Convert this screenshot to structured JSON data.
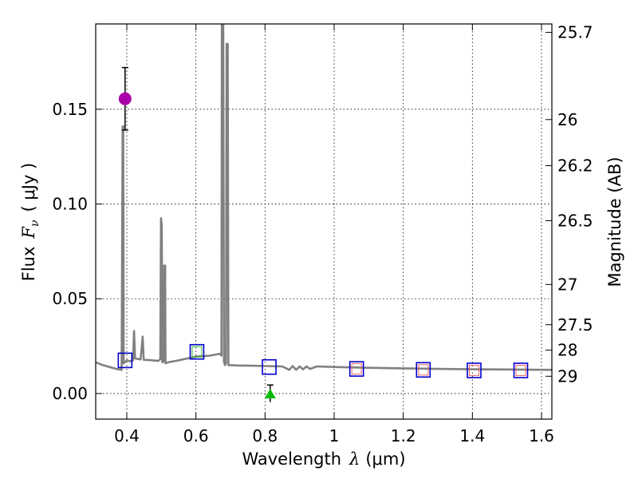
{
  "chart_data": {
    "type": "line",
    "xlabel": "Wavelength",
    "xlabel_symbol": "λ",
    "xlabel_unit": "(μm)",
    "ylabel": "Flux",
    "ylabel_symbol": "F",
    "ylabel_subscript": "ν",
    "ylabel_unit": "( μJy )",
    "y2label": "Magnitude (AB)",
    "xlim": [
      0.31,
      1.63
    ],
    "ylim": [
      -0.0135,
      0.195
    ],
    "grid": true,
    "x_ticks": [
      0.4,
      0.6,
      0.8,
      1.0,
      1.2,
      1.4,
      1.6
    ],
    "x_tick_labels": [
      "0.4",
      "0.6",
      "0.8",
      "1",
      "1.2",
      "1.4",
      "1.6"
    ],
    "y_ticks": [
      0.0,
      0.05,
      0.1,
      0.15
    ],
    "y_tick_labels": [
      "0.00",
      "0.05",
      "0.10",
      "0.15"
    ],
    "mag_ticks": [
      25.7,
      26,
      26.2,
      26.5,
      27,
      27.5,
      28,
      29
    ],
    "mag_tick_labels": [
      "25.7",
      "26",
      "26.2",
      "26.5",
      "27",
      "27.5",
      "28",
      "29"
    ],
    "colors": {
      "spectrum": "#808080",
      "observed_point": "#aa00aa",
      "upper_limit": "#00bb00",
      "model_box": "#0000cc",
      "model_inner": "#ee6666",
      "model_inner_green": "#33bb33",
      "errorbar": "#000000"
    },
    "spectrum": [
      [
        0.31,
        0.0165
      ],
      [
        0.33,
        0.015
      ],
      [
        0.35,
        0.014
      ],
      [
        0.37,
        0.013
      ],
      [
        0.385,
        0.0125
      ],
      [
        0.388,
        0.141
      ],
      [
        0.3895,
        0.141
      ],
      [
        0.391,
        0.016
      ],
      [
        0.4,
        0.0175
      ],
      [
        0.41,
        0.017
      ],
      [
        0.418,
        0.0175
      ],
      [
        0.421,
        0.033
      ],
      [
        0.424,
        0.0185
      ],
      [
        0.44,
        0.018
      ],
      [
        0.446,
        0.03
      ],
      [
        0.449,
        0.0178
      ],
      [
        0.47,
        0.0176
      ],
      [
        0.49,
        0.0172
      ],
      [
        0.497,
        0.018
      ],
      [
        0.499,
        0.0925
      ],
      [
        0.501,
        0.089
      ],
      [
        0.503,
        0.0165
      ],
      [
        0.507,
        0.017
      ],
      [
        0.508,
        0.0675
      ],
      [
        0.511,
        0.0675
      ],
      [
        0.512,
        0.016
      ],
      [
        0.52,
        0.0165
      ],
      [
        0.55,
        0.0175
      ],
      [
        0.6,
        0.0195
      ],
      [
        0.64,
        0.02
      ],
      [
        0.67,
        0.021
      ],
      [
        0.674,
        0.02
      ],
      [
        0.675,
        0.199
      ],
      [
        0.679,
        0.199
      ],
      [
        0.681,
        0.017
      ],
      [
        0.684,
        0.015
      ],
      [
        0.687,
        0.016
      ],
      [
        0.689,
        0.1845
      ],
      [
        0.692,
        0.1845
      ],
      [
        0.694,
        0.015
      ],
      [
        0.72,
        0.0148
      ],
      [
        0.76,
        0.0147
      ],
      [
        0.8,
        0.0145
      ],
      [
        0.85,
        0.0143
      ],
      [
        0.87,
        0.0125
      ],
      [
        0.88,
        0.0145
      ],
      [
        0.89,
        0.0125
      ],
      [
        0.9,
        0.0143
      ],
      [
        0.91,
        0.0128
      ],
      [
        0.92,
        0.0143
      ],
      [
        0.93,
        0.013
      ],
      [
        0.95,
        0.0143
      ],
      [
        1.0,
        0.014
      ],
      [
        1.05,
        0.0138
      ],
      [
        1.1,
        0.0136
      ],
      [
        1.2,
        0.0133
      ],
      [
        1.3,
        0.013
      ],
      [
        1.4,
        0.0128
      ],
      [
        1.5,
        0.0127
      ],
      [
        1.63,
        0.0125
      ]
    ],
    "observed": [
      {
        "x": 0.395,
        "y": 0.1555,
        "yerr_low": 0.0165,
        "yerr_high": 0.0165
      }
    ],
    "upper_limits": [
      {
        "x": 0.815,
        "y": 0.0,
        "err": 0.0045
      }
    ],
    "model_points": [
      {
        "x": 0.395,
        "y": 0.0175,
        "inner": "none"
      },
      {
        "x": 0.603,
        "y": 0.022,
        "inner": "green"
      },
      {
        "x": 0.812,
        "y": 0.014,
        "inner": "none"
      },
      {
        "x": 1.065,
        "y": 0.013,
        "inner": "red"
      },
      {
        "x": 1.258,
        "y": 0.0125,
        "inner": "red"
      },
      {
        "x": 1.405,
        "y": 0.0122,
        "inner": "red"
      },
      {
        "x": 1.54,
        "y": 0.0122,
        "inner": "red"
      }
    ]
  }
}
